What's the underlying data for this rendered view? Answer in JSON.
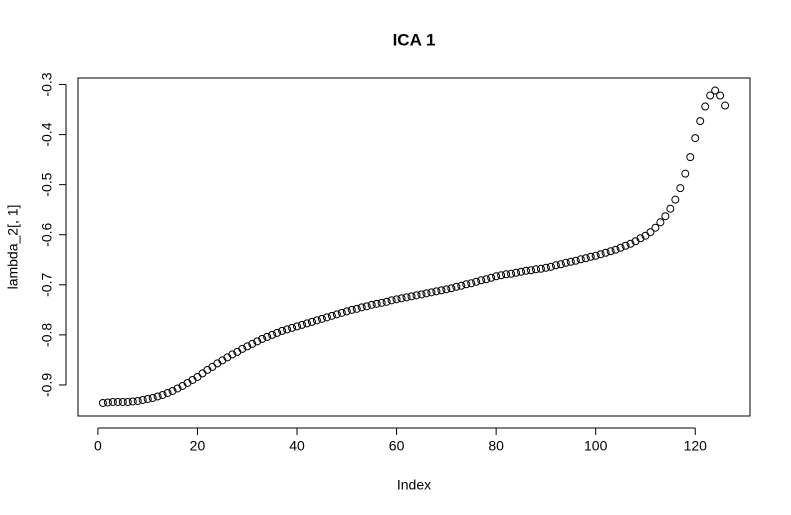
{
  "chart_data": {
    "type": "scatter",
    "title": "ICA 1",
    "x_label": "Index",
    "y_label": "lambda_2[, 1]",
    "x": [
      1,
      2,
      3,
      4,
      5,
      6,
      7,
      8,
      9,
      10,
      11,
      12,
      13,
      14,
      15,
      16,
      17,
      18,
      19,
      20,
      21,
      22,
      23,
      24,
      25,
      26,
      27,
      28,
      29,
      30,
      31,
      32,
      33,
      34,
      35,
      36,
      37,
      38,
      39,
      40,
      41,
      42,
      43,
      44,
      45,
      46,
      47,
      48,
      49,
      50,
      51,
      52,
      53,
      54,
      55,
      56,
      57,
      58,
      59,
      60,
      61,
      62,
      63,
      64,
      65,
      66,
      67,
      68,
      69,
      70,
      71,
      72,
      73,
      74,
      75,
      76,
      77,
      78,
      79,
      80,
      81,
      82,
      83,
      84,
      85,
      86,
      87,
      88,
      89,
      90,
      91,
      92,
      93,
      94,
      95,
      96,
      97,
      98,
      99,
      100,
      101,
      102,
      103,
      104,
      105,
      106,
      107,
      108,
      109,
      110,
      111,
      112,
      113,
      114,
      115,
      116,
      117,
      118,
      119,
      120,
      121,
      122,
      123,
      124,
      125,
      126
    ],
    "series": [
      {
        "color": "#000000",
        "values": [
          -0.936,
          -0.935,
          -0.934,
          -0.934,
          -0.934,
          -0.934,
          -0.933,
          -0.932,
          -0.93,
          -0.928,
          -0.926,
          -0.923,
          -0.92,
          -0.916,
          -0.912,
          -0.907,
          -0.902,
          -0.896,
          -0.89,
          -0.884,
          -0.877,
          -0.87,
          -0.864,
          -0.857,
          -0.851,
          -0.845,
          -0.839,
          -0.834,
          -0.828,
          -0.823,
          -0.818,
          -0.813,
          -0.808,
          -0.804,
          -0.8,
          -0.796,
          -0.792,
          -0.789,
          -0.786,
          -0.783,
          -0.78,
          -0.777,
          -0.774,
          -0.771,
          -0.768,
          -0.765,
          -0.762,
          -0.759,
          -0.756,
          -0.753,
          -0.75,
          -0.748,
          -0.745,
          -0.743,
          -0.74,
          -0.738,
          -0.736,
          -0.734,
          -0.731,
          -0.729,
          -0.727,
          -0.725,
          -0.723,
          -0.721,
          -0.719,
          -0.717,
          -0.715,
          -0.713,
          -0.711,
          -0.709,
          -0.707,
          -0.704,
          -0.702,
          -0.699,
          -0.697,
          -0.694,
          -0.691,
          -0.689,
          -0.686,
          -0.683,
          -0.681,
          -0.679,
          -0.678,
          -0.676,
          -0.674,
          -0.672,
          -0.671,
          -0.669,
          -0.668,
          -0.666,
          -0.664,
          -0.661,
          -0.659,
          -0.656,
          -0.654,
          -0.652,
          -0.649,
          -0.647,
          -0.644,
          -0.642,
          -0.639,
          -0.636,
          -0.633,
          -0.63,
          -0.626,
          -0.622,
          -0.618,
          -0.613,
          -0.607,
          -0.602,
          -0.595,
          -0.586,
          -0.575,
          -0.563,
          -0.548,
          -0.53,
          -0.507,
          -0.478,
          -0.445,
          -0.407,
          -0.373,
          -0.344,
          -0.322,
          -0.312,
          -0.322,
          -0.342
        ]
      }
    ],
    "xlim": [
      -4,
      131
    ],
    "ylim": [
      -0.962,
      -0.287
    ],
    "xticks": [
      0,
      20,
      40,
      60,
      80,
      100,
      120
    ],
    "yticks": [
      -0.9,
      -0.8,
      -0.7,
      -0.6,
      -0.5,
      -0.4,
      -0.3
    ]
  }
}
